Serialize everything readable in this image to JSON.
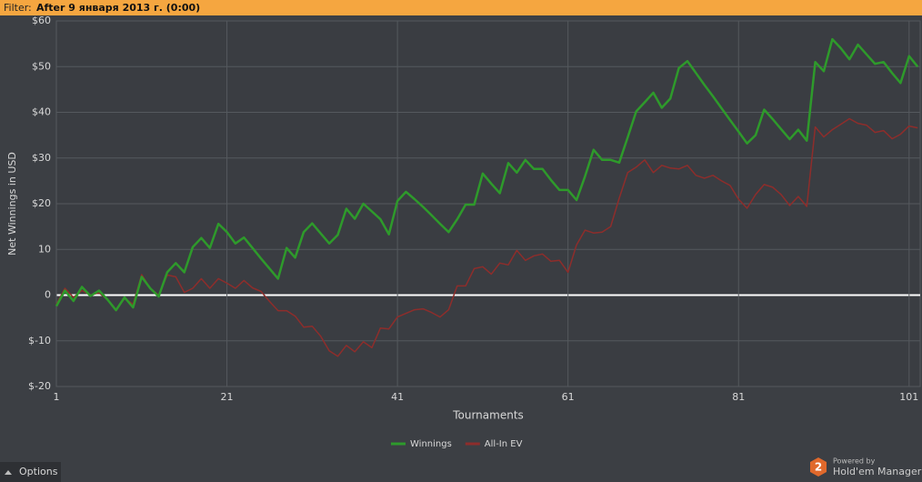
{
  "filter": {
    "label": "Filter:",
    "value": "After 9 января 2013 г. (0:00)"
  },
  "chart_data": {
    "type": "line",
    "x_label": "Tournaments",
    "y_label": "Net Winnings in USD",
    "x": [
      1,
      2,
      3,
      4,
      5,
      6,
      7,
      8,
      9,
      10,
      11,
      12,
      13,
      14,
      15,
      16,
      17,
      18,
      19,
      20,
      21,
      22,
      23,
      24,
      25,
      26,
      27,
      28,
      29,
      30,
      31,
      32,
      33,
      34,
      35,
      36,
      37,
      38,
      39,
      40,
      41,
      42,
      43,
      44,
      45,
      46,
      47,
      48,
      49,
      50,
      51,
      52,
      53,
      54,
      55,
      56,
      57,
      58,
      59,
      60,
      61,
      62,
      63,
      64,
      65,
      66,
      67,
      68,
      69,
      70,
      71,
      72,
      73,
      74,
      75,
      76,
      77,
      78,
      79,
      80,
      81,
      82,
      83,
      84,
      85,
      86,
      87,
      88,
      89,
      90,
      91,
      92,
      93,
      94,
      95,
      96,
      97,
      98,
      99,
      100,
      101,
      102
    ],
    "series": [
      {
        "name": "Winnings",
        "color": "#2e9a2b",
        "values": [
          -2.4,
          1,
          -1.3,
          1.8,
          -0.2,
          1,
          -1,
          -3.3,
          -0.5,
          -2.7,
          4,
          1.5,
          -0.3,
          5,
          7,
          5,
          10.5,
          12.5,
          10.3,
          15.6,
          13.8,
          11.3,
          12.6,
          10.3,
          8,
          5.8,
          3.6,
          10.3,
          8.2,
          13.8,
          15.7,
          13.5,
          11.3,
          13.2,
          18.9,
          16.7,
          20,
          18.3,
          16.6,
          13.3,
          20.6,
          22.6,
          21,
          19.3,
          17.5,
          15.6,
          13.8,
          16.6,
          19.8,
          19.8,
          26.6,
          24.4,
          22.3,
          28.9,
          26.8,
          29.6,
          27.6,
          27.6,
          25.2,
          23,
          23,
          20.8,
          26,
          31.8,
          29.6,
          29.6,
          29,
          34.5,
          40.2,
          42.2,
          44.3,
          41,
          43,
          49.7,
          51.2,
          48.6,
          46,
          43.5,
          40.9,
          38.3,
          35.8,
          33.2,
          35,
          40.6,
          38.5,
          36.3,
          34.1,
          36.2,
          33.8,
          51,
          49,
          56,
          54,
          51.6,
          54.8,
          52.7,
          50.6,
          51,
          48.6,
          46.4,
          52.3,
          50
        ]
      },
      {
        "name": "All-In EV",
        "color": "#8e2d2b",
        "values": [
          -2,
          1.5,
          -0.5,
          1,
          0,
          0.5,
          -1,
          -3.4,
          -0.7,
          -2,
          4.5,
          1.5,
          0,
          4.4,
          4,
          0.6,
          1.5,
          3.6,
          1.5,
          3.6,
          2.6,
          1.5,
          3.2,
          1.6,
          0.8,
          -1.4,
          -3.4,
          -3.4,
          -4.6,
          -7,
          -6.8,
          -9,
          -12.2,
          -13.4,
          -11,
          -12.4,
          -10.2,
          -11.5,
          -7.2,
          -7.4,
          -4.8,
          -4,
          -3.2,
          -3,
          -3.8,
          -4.8,
          -3.2,
          2,
          2,
          5.8,
          6.2,
          4.6,
          7,
          6.6,
          9.8,
          7.6,
          8.6,
          9,
          7.4,
          7.6,
          5,
          11,
          14.2,
          13.6,
          13.8,
          15,
          21.2,
          26.8,
          28,
          29.6,
          26.8,
          28.4,
          27.8,
          27.6,
          28.4,
          26.2,
          25.6,
          26.2,
          25,
          24,
          21,
          19,
          22,
          24.2,
          23.6,
          22,
          19.6,
          21.6,
          19.4,
          36.8,
          34.6,
          36.2,
          37.4,
          38.6,
          37.6,
          37.2,
          35.6,
          36,
          34.2,
          35.2,
          37,
          36.6
        ]
      }
    ],
    "xlim": [
      1,
      102.3
    ],
    "xticks": [
      1,
      21,
      41,
      61,
      81,
      101
    ],
    "ylim": [
      -20,
      60
    ],
    "yticks": [
      {
        "value": -20,
        "label": "$-20"
      },
      {
        "value": -10,
        "label": "$-10"
      },
      0,
      10,
      {
        "value": 20,
        "label": "$20"
      },
      {
        "value": 30,
        "label": "$30"
      },
      {
        "value": 40,
        "label": "$40"
      },
      {
        "value": 50,
        "label": "$50"
      },
      {
        "value": 60,
        "label": "$60"
      }
    ],
    "grid": true,
    "legend": "bottom"
  },
  "options": "Options",
  "branding": {
    "badge": "2",
    "powered_by": "Powered by",
    "name": "Hold'em Manager"
  }
}
